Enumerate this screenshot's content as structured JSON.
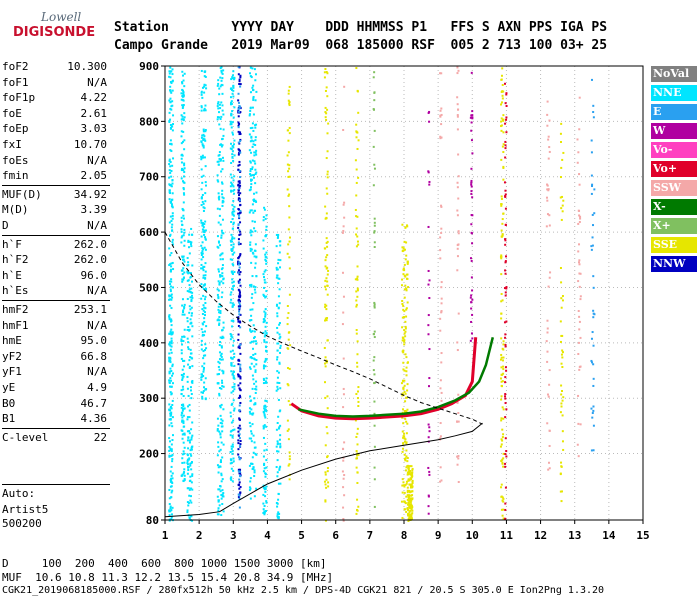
{
  "logo": {
    "line1": "Lowell",
    "line2": "DIGISONDE"
  },
  "header": {
    "labels_row": "Station        YYYY DAY    DDD HHMMSS P1   FFS S AXN PPS IGA PS",
    "values_row": "Campo Grande   2019 Mar09  068 185000 RSF  005 2 713 100 03+ 25"
  },
  "params": [
    {
      "k": "foF2",
      "v": "10.300"
    },
    {
      "k": "foF1",
      "v": "N/A"
    },
    {
      "k": "foF1p",
      "v": "4.22"
    },
    {
      "k": "foE",
      "v": "2.61"
    },
    {
      "k": "foEp",
      "v": "3.03"
    },
    {
      "k": "fxI",
      "v": "10.70"
    },
    {
      "k": "foEs",
      "v": "N/A"
    },
    {
      "k": "fmin",
      "v": "2.05"
    },
    {
      "k": "MUF(D)",
      "v": "34.92"
    },
    {
      "k": "M(D)",
      "v": "3.39"
    },
    {
      "k": "D",
      "v": "N/A"
    },
    {
      "k": "h`F",
      "v": "262.0"
    },
    {
      "k": "h`F2",
      "v": "262.0"
    },
    {
      "k": "h`E",
      "v": "96.0"
    },
    {
      "k": "h`Es",
      "v": "N/A"
    },
    {
      "k": "hmF2",
      "v": "253.1"
    },
    {
      "k": "hmF1",
      "v": "N/A"
    },
    {
      "k": "hmE",
      "v": "95.0"
    },
    {
      "k": "yF2",
      "v": "66.8"
    },
    {
      "k": "yF1",
      "v": "N/A"
    },
    {
      "k": "yE",
      "v": "4.9"
    },
    {
      "k": "B0",
      "v": "46.7"
    },
    {
      "k": "B1",
      "v": "4.36"
    },
    {
      "k": "C-level",
      "v": "22"
    }
  ],
  "auto_block": {
    "line1": "Auto:",
    "line2": "Artist5",
    "line3": "500200"
  },
  "legend": [
    {
      "label": "NoVal",
      "color": "#808080"
    },
    {
      "label": "NNE",
      "color": "#00e5ff"
    },
    {
      "label": "E",
      "color": "#2aa0f0"
    },
    {
      "label": "W",
      "color": "#b000a0"
    },
    {
      "label": "Vo-",
      "color": "#ff40c0"
    },
    {
      "label": "Vo+",
      "color": "#e0002a"
    },
    {
      "label": "SSW",
      "color": "#f4a8a8"
    },
    {
      "label": "X-",
      "color": "#007a00"
    },
    {
      "label": "X+",
      "color": "#80c060"
    },
    {
      "label": "SSE",
      "color": "#e6e600"
    },
    {
      "label": "NNW",
      "color": "#0000c0"
    }
  ],
  "footer": {
    "d_row": "D     100  200  400  600  800 1000 1500 3000 [km]",
    "muf_row": "MUF  10.6 10.8 11.3 12.2 13.5 15.4 20.8 34.9 [MHz]",
    "info_row": "CGK21_2019068185000.RSF / 280fx512h 50 kHz 2.5 km / DPS-4D CGK21 821 / 20.5 S 305.0 E Ion2Png 1.3.20"
  },
  "chart_data": {
    "type": "scatter",
    "xlim": [
      1,
      15
    ],
    "ylim": [
      80,
      900
    ],
    "x_ticks": [
      1,
      2,
      3,
      4,
      5,
      6,
      7,
      8,
      9,
      10,
      11,
      12,
      13,
      14,
      15
    ],
    "y_ticks": [
      80,
      200,
      300,
      400,
      500,
      600,
      700,
      800,
      900
    ],
    "grid": "dotted",
    "series": [
      {
        "name": "O-trace",
        "color": "#e0002a",
        "x": [
          4.7,
          5.0,
          5.5,
          6.0,
          6.5,
          7.0,
          7.5,
          8.0,
          8.5,
          9.0,
          9.4,
          9.8,
          10.0,
          10.1
        ],
        "y": [
          290,
          277,
          268,
          264,
          263,
          264,
          266,
          268,
          272,
          280,
          290,
          305,
          330,
          410
        ]
      },
      {
        "name": "X-trace",
        "color": "#007a00",
        "x": [
          4.9,
          5.5,
          6.0,
          6.5,
          7.0,
          7.5,
          8.0,
          8.5,
          9.0,
          9.5,
          9.9,
          10.2,
          10.4,
          10.6
        ],
        "y": [
          280,
          272,
          268,
          267,
          268,
          270,
          272,
          276,
          284,
          296,
          310,
          330,
          360,
          410
        ]
      },
      {
        "name": "profile-dashed",
        "x": [
          1.0,
          1.5,
          2.0,
          2.5,
          3.0,
          3.5,
          4.0,
          4.5,
          5.0,
          5.5,
          6.0,
          6.5,
          7.0,
          7.5,
          8.0,
          8.5,
          9.0,
          9.5,
          10.0,
          10.3
        ],
        "y": [
          600,
          545,
          505,
          475,
          450,
          430,
          412,
          398,
          385,
          373,
          360,
          348,
          335,
          320,
          305,
          292,
          282,
          272,
          262,
          253
        ]
      },
      {
        "name": "profile-solid",
        "x": [
          1.0,
          2.0,
          2.6,
          3.0,
          4.0,
          5.0,
          6.0,
          7.0,
          8.0,
          9.0,
          9.5,
          10.0,
          10.3
        ],
        "y": [
          86,
          90,
          95,
          110,
          145,
          170,
          190,
          205,
          215,
          225,
          232,
          240,
          255
        ]
      }
    ]
  }
}
